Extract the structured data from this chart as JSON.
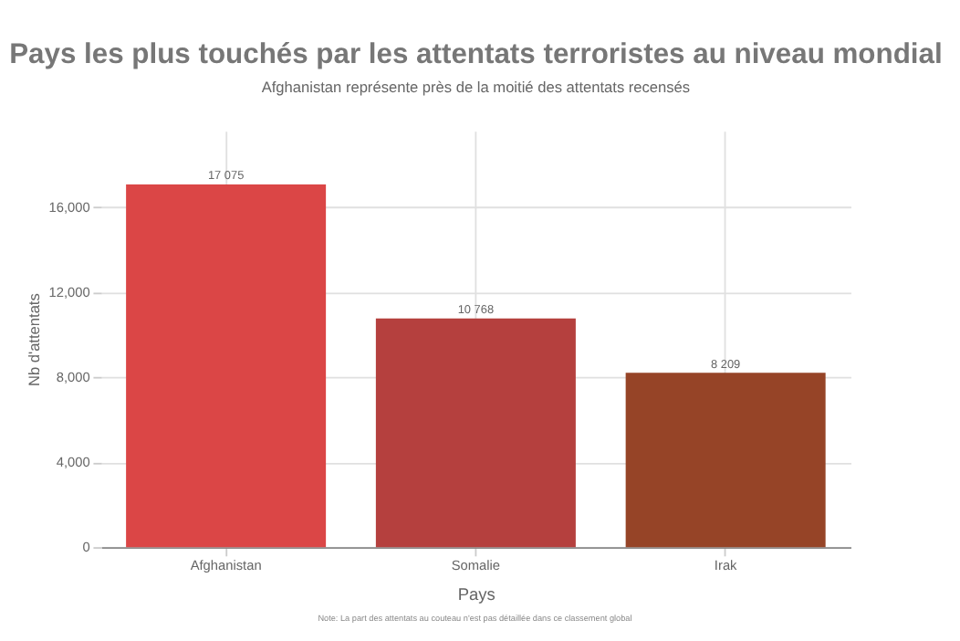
{
  "chart_data": {
    "type": "bar",
    "title": "Pays les plus touchés par les attentats terroristes au niveau mondial",
    "subtitle": "Afghanistan représente près de la moitié des attentats recensés",
    "xlabel": "Pays",
    "ylabel": "Nb d'attentats",
    "categories": [
      "Afghanistan",
      "Somalie",
      "Irak"
    ],
    "values": [
      17075,
      10768,
      8209
    ],
    "value_labels": [
      "17 075",
      "10 768",
      "8 209"
    ],
    "colors": [
      "#db4646",
      "#b5403e",
      "#964427"
    ],
    "ylim": [
      0,
      19600
    ],
    "yticks": [
      {
        "value": 0,
        "label": "0"
      },
      {
        "value": 4000,
        "label": "4,000"
      },
      {
        "value": 8000,
        "label": "8,000"
      },
      {
        "value": 12000,
        "label": "12,000"
      },
      {
        "value": 16000,
        "label": "16,000"
      }
    ],
    "grid": true,
    "legend": false,
    "annotations": [
      "Note: La part des attentats au couteau n'est pas détaillée dans ce classement global"
    ]
  }
}
